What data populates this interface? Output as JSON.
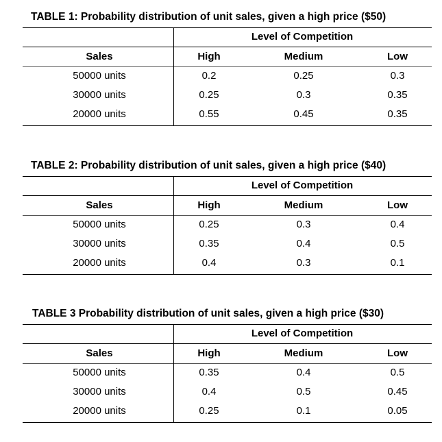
{
  "tables": [
    {
      "title": "TABLE 1: Probability distribution of unit sales, given a high price ($50)",
      "group_header": "Level of Competition",
      "columns": [
        "Sales",
        "High",
        "Medium",
        "Low"
      ],
      "rows": [
        [
          "50000 units",
          "0.2",
          "0.25",
          "0.3"
        ],
        [
          "30000 units",
          "0.25",
          "0.3",
          "0.35"
        ],
        [
          "20000 units",
          "0.55",
          "0.45",
          "0.35"
        ]
      ]
    },
    {
      "title": "TABLE 2: Probability distribution of unit sales, given a high price ($40)",
      "group_header": "Level of Competition",
      "columns": [
        "Sales",
        "High",
        "Medium",
        "Low"
      ],
      "rows": [
        [
          "50000 units",
          "0.25",
          "0.3",
          "0.4"
        ],
        [
          "30000 units",
          "0.35",
          "0.4",
          "0.5"
        ],
        [
          "20000 units",
          "0.4",
          "0.3",
          "0.1"
        ]
      ]
    },
    {
      "title": "TABLE 3 Probability distribution of unit sales, given a high price ($30)",
      "group_header": "Level of Competition",
      "columns": [
        "Sales",
        "High",
        "Medium",
        "Low"
      ],
      "rows": [
        [
          "50000 units",
          "0.35",
          "0.4",
          "0.5"
        ],
        [
          "30000 units",
          "0.4",
          "0.5",
          "0.45"
        ],
        [
          "20000 units",
          "0.25",
          "0.1",
          "0.05"
        ]
      ]
    }
  ]
}
